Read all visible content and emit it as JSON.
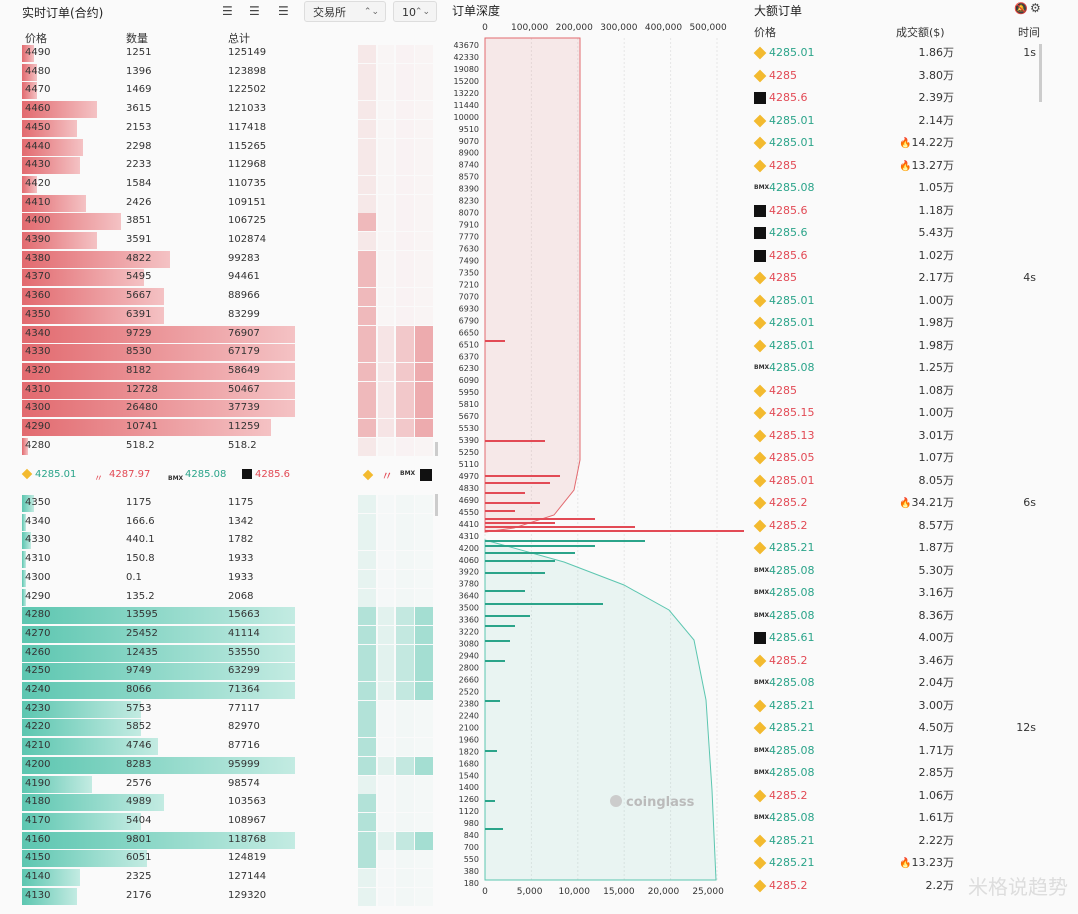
{
  "orderbook": {
    "title": "实时订单(合约)",
    "exchange_select": "交易所",
    "depth_select": "10",
    "col_price": "价格",
    "col_qty": "数量",
    "col_total": "总计",
    "asks": [
      {
        "price": "4490",
        "qty": "1251",
        "total": "125149",
        "pct": 0.04
      },
      {
        "price": "4480",
        "qty": "1396",
        "total": "123898",
        "pct": 0.05
      },
      {
        "price": "4470",
        "qty": "1469",
        "total": "122502",
        "pct": 0.05
      },
      {
        "price": "4460",
        "qty": "3615",
        "total": "121033",
        "pct": 0.26
      },
      {
        "price": "4450",
        "qty": "2153",
        "total": "117418",
        "pct": 0.19
      },
      {
        "price": "4440",
        "qty": "2298",
        "total": "115265",
        "pct": 0.21
      },
      {
        "price": "4430",
        "qty": "2233",
        "total": "112968",
        "pct": 0.2
      },
      {
        "price": "4420",
        "qty": "1584",
        "total": "110735",
        "pct": 0.05
      },
      {
        "price": "4410",
        "qty": "2426",
        "total": "109151",
        "pct": 0.22
      },
      {
        "price": "4400",
        "qty": "3851",
        "total": "106725",
        "pct": 0.34
      },
      {
        "price": "4390",
        "qty": "3591",
        "total": "102874",
        "pct": 0.26
      },
      {
        "price": "4380",
        "qty": "4822",
        "total": "99283",
        "pct": 0.51
      },
      {
        "price": "4370",
        "qty": "5495",
        "total": "94461",
        "pct": 0.42
      },
      {
        "price": "4360",
        "qty": "5667",
        "total": "88966",
        "pct": 0.49
      },
      {
        "price": "4350",
        "qty": "6391",
        "total": "83299",
        "pct": 0.49
      },
      {
        "price": "4340",
        "qty": "9729",
        "total": "76907",
        "pct": 0.94
      },
      {
        "price": "4330",
        "qty": "8530",
        "total": "67179",
        "pct": 0.94
      },
      {
        "price": "4320",
        "qty": "8182",
        "total": "58649",
        "pct": 0.94
      },
      {
        "price": "4310",
        "qty": "12728",
        "total": "50467",
        "pct": 0.94
      },
      {
        "price": "4300",
        "qty": "26480",
        "total": "37739",
        "pct": 0.94
      },
      {
        "price": "4290",
        "qty": "10741",
        "total": "11259",
        "pct": 0.86
      },
      {
        "price": "4280",
        "qty": "518.2",
        "total": "518.2",
        "pct": 0.02
      }
    ],
    "exchange_prices": [
      {
        "icon": "binance-icon",
        "value": "4285.01",
        "color": "up"
      },
      {
        "icon": "hyperliquid-icon",
        "value": "4287.97",
        "color": "dn"
      },
      {
        "icon": "bmx-icon",
        "value": "4285.08",
        "color": "up"
      },
      {
        "icon": "okx-icon",
        "value": "4285.6",
        "color": "dn"
      }
    ],
    "bids": [
      {
        "price": "4350",
        "qty": "1175",
        "total": "1175",
        "pct": 0.04
      },
      {
        "price": "4340",
        "qty": "166.6",
        "total": "1342",
        "pct": 0.0
      },
      {
        "price": "4330",
        "qty": "440.1",
        "total": "1782",
        "pct": 0.03
      },
      {
        "price": "4310",
        "qty": "150.8",
        "total": "1933",
        "pct": 0.01
      },
      {
        "price": "4300",
        "qty": "0.1",
        "total": "1933",
        "pct": 0.0
      },
      {
        "price": "4290",
        "qty": "135.2",
        "total": "2068",
        "pct": 0.01
      },
      {
        "price": "4280",
        "qty": "13595",
        "total": "15663",
        "pct": 0.94
      },
      {
        "price": "4270",
        "qty": "25452",
        "total": "41114",
        "pct": 0.94
      },
      {
        "price": "4260",
        "qty": "12435",
        "total": "53550",
        "pct": 0.94
      },
      {
        "price": "4250",
        "qty": "9749",
        "total": "63299",
        "pct": 0.94
      },
      {
        "price": "4240",
        "qty": "8066",
        "total": "71364",
        "pct": 0.94
      },
      {
        "price": "4230",
        "qty": "5753",
        "total": "77117",
        "pct": 0.41
      },
      {
        "price": "4220",
        "qty": "5852",
        "total": "82970",
        "pct": 0.41
      },
      {
        "price": "4210",
        "qty": "4746",
        "total": "87716",
        "pct": 0.47
      },
      {
        "price": "4200",
        "qty": "8283",
        "total": "95999",
        "pct": 0.94
      },
      {
        "price": "4190",
        "qty": "2576",
        "total": "98574",
        "pct": 0.24
      },
      {
        "price": "4180",
        "qty": "4989",
        "total": "103563",
        "pct": 0.49
      },
      {
        "price": "4170",
        "qty": "5404",
        "total": "108967",
        "pct": 0.41
      },
      {
        "price": "4160",
        "qty": "9801",
        "total": "118768",
        "pct": 0.94
      },
      {
        "price": "4150",
        "qty": "6051",
        "total": "124819",
        "pct": 0.43
      },
      {
        "price": "4140",
        "qty": "2325",
        "total": "127144",
        "pct": 0.2
      },
      {
        "price": "4130",
        "qty": "2176",
        "total": "129320",
        "pct": 0.19
      }
    ]
  },
  "depth": {
    "title": "订单深度",
    "top_ticks": [
      "0",
      "100,000",
      "200,000",
      "300,000",
      "400,000",
      "500,000"
    ],
    "bottom_ticks": [
      "0",
      "5,000",
      "10,000",
      "15,000",
      "20,000",
      "25,000"
    ],
    "price_ticks": [
      "43670",
      "42330",
      "19080",
      "15200",
      "13220",
      "11440",
      "10000",
      "9510",
      "9070",
      "8900",
      "8740",
      "8570",
      "8390",
      "8230",
      "8070",
      "7910",
      "7770",
      "7630",
      "7490",
      "7350",
      "7210",
      "7070",
      "6930",
      "6790",
      "6650",
      "6510",
      "6370",
      "6230",
      "6090",
      "5950",
      "5810",
      "5670",
      "5530",
      "5390",
      "5250",
      "5110",
      "4970",
      "4830",
      "4690",
      "4550",
      "4410",
      "4310",
      "4200",
      "4060",
      "3920",
      "3780",
      "3640",
      "3500",
      "3360",
      "3220",
      "3080",
      "2940",
      "2800",
      "2660",
      "2520",
      "2380",
      "2240",
      "2100",
      "1960",
      "1820",
      "1680",
      "1540",
      "1400",
      "1260",
      "1120",
      "980",
      "840",
      "700",
      "550",
      "380",
      "180"
    ],
    "watermark": "coinglass"
  },
  "large_orders": {
    "title": "大额订单",
    "col_price": "价格",
    "col_amount": "成交额($)",
    "col_time": "时间",
    "rows": [
      {
        "ex": "binance-icon",
        "price": "4285.01",
        "dir": "up",
        "amount": "1.86万",
        "hot": false,
        "time": "1s"
      },
      {
        "ex": "binance-icon",
        "price": "4285",
        "dir": "dn",
        "amount": "3.80万",
        "hot": false,
        "time": ""
      },
      {
        "ex": "okx-icon",
        "price": "4285.6",
        "dir": "dn",
        "amount": "2.39万",
        "hot": false,
        "time": ""
      },
      {
        "ex": "binance-icon",
        "price": "4285.01",
        "dir": "up",
        "amount": "2.14万",
        "hot": false,
        "time": ""
      },
      {
        "ex": "binance-icon",
        "price": "4285.01",
        "dir": "up",
        "amount": "14.22万",
        "hot": true,
        "time": ""
      },
      {
        "ex": "binance-icon",
        "price": "4285",
        "dir": "dn",
        "amount": "13.27万",
        "hot": true,
        "time": ""
      },
      {
        "ex": "bmx-icon",
        "price": "4285.08",
        "dir": "up",
        "amount": "1.05万",
        "hot": false,
        "time": ""
      },
      {
        "ex": "okx-icon",
        "price": "4285.6",
        "dir": "dn",
        "amount": "1.18万",
        "hot": false,
        "time": ""
      },
      {
        "ex": "okx-icon",
        "price": "4285.6",
        "dir": "up",
        "amount": "5.43万",
        "hot": false,
        "time": ""
      },
      {
        "ex": "okx-icon",
        "price": "4285.6",
        "dir": "dn",
        "amount": "1.02万",
        "hot": false,
        "time": ""
      },
      {
        "ex": "binance-icon",
        "price": "4285",
        "dir": "dn",
        "amount": "2.17万",
        "hot": false,
        "time": "4s"
      },
      {
        "ex": "binance-icon",
        "price": "4285.01",
        "dir": "up",
        "amount": "1.00万",
        "hot": false,
        "time": ""
      },
      {
        "ex": "binance-icon",
        "price": "4285.01",
        "dir": "up",
        "amount": "1.98万",
        "hot": false,
        "time": ""
      },
      {
        "ex": "binance-icon",
        "price": "4285.01",
        "dir": "up",
        "amount": "1.98万",
        "hot": false,
        "time": ""
      },
      {
        "ex": "bmx-icon",
        "price": "4285.08",
        "dir": "up",
        "amount": "1.25万",
        "hot": false,
        "time": ""
      },
      {
        "ex": "binance-icon",
        "price": "4285",
        "dir": "dn",
        "amount": "1.08万",
        "hot": false,
        "time": ""
      },
      {
        "ex": "binance-icon",
        "price": "4285.15",
        "dir": "dn",
        "amount": "1.00万",
        "hot": false,
        "time": ""
      },
      {
        "ex": "binance-icon",
        "price": "4285.13",
        "dir": "dn",
        "amount": "3.01万",
        "hot": false,
        "time": ""
      },
      {
        "ex": "binance-icon",
        "price": "4285.05",
        "dir": "dn",
        "amount": "1.07万",
        "hot": false,
        "time": ""
      },
      {
        "ex": "binance-icon",
        "price": "4285.01",
        "dir": "dn",
        "amount": "8.05万",
        "hot": false,
        "time": ""
      },
      {
        "ex": "binance-icon",
        "price": "4285.2",
        "dir": "dn",
        "amount": "34.21万",
        "hot": true,
        "time": "6s"
      },
      {
        "ex": "binance-icon",
        "price": "4285.2",
        "dir": "dn",
        "amount": "8.57万",
        "hot": false,
        "time": ""
      },
      {
        "ex": "binance-icon",
        "price": "4285.21",
        "dir": "up",
        "amount": "1.87万",
        "hot": false,
        "time": ""
      },
      {
        "ex": "bmx-icon",
        "price": "4285.08",
        "dir": "up",
        "amount": "5.30万",
        "hot": false,
        "time": ""
      },
      {
        "ex": "bmx-icon",
        "price": "4285.08",
        "dir": "up",
        "amount": "3.16万",
        "hot": false,
        "time": ""
      },
      {
        "ex": "bmx-icon",
        "price": "4285.08",
        "dir": "up",
        "amount": "8.36万",
        "hot": false,
        "time": ""
      },
      {
        "ex": "okx-icon",
        "price": "4285.61",
        "dir": "up",
        "amount": "4.00万",
        "hot": false,
        "time": ""
      },
      {
        "ex": "binance-icon",
        "price": "4285.2",
        "dir": "dn",
        "amount": "3.46万",
        "hot": false,
        "time": ""
      },
      {
        "ex": "bmx-icon",
        "price": "4285.08",
        "dir": "up",
        "amount": "2.04万",
        "hot": false,
        "time": ""
      },
      {
        "ex": "binance-icon",
        "price": "4285.21",
        "dir": "up",
        "amount": "3.00万",
        "hot": false,
        "time": ""
      },
      {
        "ex": "binance-icon",
        "price": "4285.21",
        "dir": "up",
        "amount": "4.50万",
        "hot": false,
        "time": "12s"
      },
      {
        "ex": "bmx-icon",
        "price": "4285.08",
        "dir": "up",
        "amount": "1.71万",
        "hot": false,
        "time": ""
      },
      {
        "ex": "bmx-icon",
        "price": "4285.08",
        "dir": "up",
        "amount": "2.85万",
        "hot": false,
        "time": ""
      },
      {
        "ex": "binance-icon",
        "price": "4285.2",
        "dir": "dn",
        "amount": "1.06万",
        "hot": false,
        "time": ""
      },
      {
        "ex": "bmx-icon",
        "price": "4285.08",
        "dir": "up",
        "amount": "1.61万",
        "hot": false,
        "time": ""
      },
      {
        "ex": "binance-icon",
        "price": "4285.21",
        "dir": "up",
        "amount": "2.22万",
        "hot": false,
        "time": ""
      },
      {
        "ex": "binance-icon",
        "price": "4285.21",
        "dir": "up",
        "amount": "13.23万",
        "hot": true,
        "time": ""
      },
      {
        "ex": "binance-icon",
        "price": "4285.2",
        "dir": "dn",
        "amount": "2.2万",
        "hot": false,
        "time": ""
      }
    ]
  },
  "watermark_text": "米格说趋势"
}
